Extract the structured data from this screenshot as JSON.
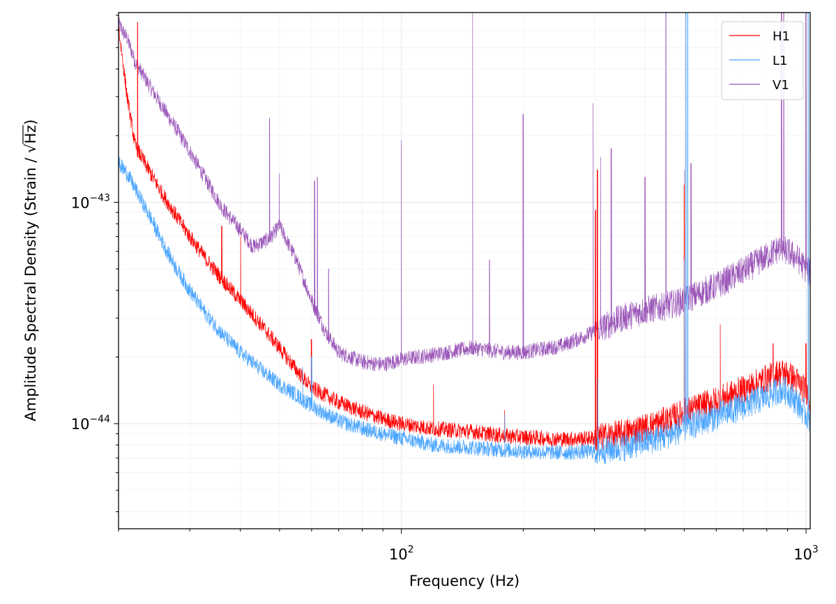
{
  "chart_data": {
    "type": "line",
    "xlabel": "Frequency (Hz)",
    "ylabel_text": "Amplitude Spectral Density (Strain / ",
    "ylabel_sqrt": "√",
    "ylabel_unit": "Hz",
    "ylabel_close": ")",
    "xscale": "log",
    "yscale": "log",
    "xlim": [
      20,
      1024
    ],
    "ylim": [
      3.35e-45,
      7.2e-43
    ],
    "grid": true,
    "legend_position": "top-right",
    "x_major_ticks": [
      {
        "value": 100,
        "base": "10",
        "exp": "2"
      },
      {
        "value": 1000,
        "base": "10",
        "exp": "3"
      }
    ],
    "y_major_ticks": [
      {
        "value": 1e-44,
        "base": "10",
        "exp": "−44"
      },
      {
        "value": 1e-43,
        "base": "10",
        "exp": "−43"
      }
    ],
    "series": [
      {
        "name": "H1",
        "color": "#ff0000",
        "x": [
          20,
          21,
          22,
          24,
          26,
          28,
          30,
          33,
          36,
          40,
          45,
          50,
          55,
          60,
          70,
          80,
          90,
          100,
          120,
          150,
          180,
          200,
          250,
          300,
          350,
          400,
          450,
          500,
          550,
          600,
          700,
          800,
          860,
          900,
          950,
          1000,
          1024
        ],
        "y": [
          6.2e-43,
          3e-43,
          1.8e-43,
          1.35e-43,
          1.05e-43,
          8.5e-44,
          7e-44,
          5.5e-44,
          4.5e-44,
          3.6e-44,
          2.8e-44,
          2.2e-44,
          1.75e-44,
          1.45e-44,
          1.25e-44,
          1.13e-44,
          1.05e-44,
          1e-44,
          9.5e-45,
          9.2e-45,
          8.8e-45,
          8.7e-45,
          8.5e-45,
          8.6e-45,
          9e-45,
          9.6e-45,
          1.03e-44,
          1.12e-44,
          1.2e-44,
          1.27e-44,
          1.42e-44,
          1.6e-44,
          1.7e-44,
          1.68e-44,
          1.55e-44,
          1.4e-44,
          1.3e-44
        ],
        "spikes": [
          [
            22.3,
            6.5e-43
          ],
          [
            36,
            7.8e-44
          ],
          [
            40,
            7e-44
          ],
          [
            59.9,
            2.4e-44
          ],
          [
            120,
            1.5e-44
          ],
          [
            180,
            1.15e-44
          ],
          [
            302,
            9.2e-44
          ],
          [
            305,
            1.4e-43
          ],
          [
            500,
            1.2e-43
          ],
          [
            505,
            7.2e-43
          ],
          [
            510,
            7.2e-43
          ],
          [
            600,
            3e-44
          ],
          [
            615,
            2.8e-44
          ],
          [
            830,
            2.3e-44
          ],
          [
            1000,
            2.3e-44
          ]
        ]
      },
      {
        "name": "L1",
        "color": "#4da6ff",
        "x": [
          20,
          21,
          22,
          24,
          26,
          28,
          30,
          33,
          36,
          40,
          45,
          50,
          55,
          60,
          70,
          80,
          90,
          100,
          120,
          150,
          180,
          200,
          250,
          300,
          350,
          400,
          450,
          500,
          550,
          600,
          700,
          800,
          860,
          900,
          950,
          1000,
          1024
        ],
        "y": [
          1.5e-43,
          1.35e-43,
          1.15e-43,
          8.5e-44,
          6.3e-44,
          4.9e-44,
          4e-44,
          3.1e-44,
          2.55e-44,
          2.1e-44,
          1.75e-44,
          1.5e-44,
          1.35e-44,
          1.2e-44,
          1.03e-44,
          9.5e-45,
          9e-45,
          8.6e-45,
          8e-45,
          7.8e-45,
          7.6e-45,
          7.5e-45,
          7.4e-45,
          7.5e-45,
          7.8e-45,
          8.3e-45,
          8.8e-45,
          9.5e-45,
          1.02e-44,
          1.08e-44,
          1.2e-44,
          1.33e-44,
          1.42e-44,
          1.4e-44,
          1.25e-44,
          1.1e-44,
          1.04e-44
        ],
        "spikes": [
          [
            57,
            1.8e-44
          ],
          [
            60,
            2e-44
          ],
          [
            180,
            1.1e-44
          ],
          [
            306,
            1.6e-44
          ],
          [
            500,
            5.5e-44
          ],
          [
            505,
            7.2e-43
          ],
          [
            510,
            7.2e-43
          ],
          [
            1012,
            7.2e-43
          ]
        ]
      },
      {
        "name": "V1",
        "color": "#9a55b8",
        "x": [
          20,
          21,
          22,
          24,
          26,
          28,
          30,
          33,
          36,
          40,
          43,
          47,
          50,
          55,
          60,
          65,
          70,
          80,
          90,
          100,
          120,
          150,
          180,
          200,
          250,
          300,
          350,
          400,
          450,
          500,
          550,
          600,
          700,
          800,
          860,
          900,
          950,
          1000,
          1024
        ],
        "y": [
          6.4e-43,
          5.5e-43,
          4.3e-43,
          3.3e-43,
          2.6e-43,
          2.1e-43,
          1.7e-43,
          1.25e-43,
          9.5e-44,
          7.5e-44,
          6.3e-44,
          6.8e-44,
          7.8e-44,
          5.5e-44,
          3.6e-44,
          2.6e-44,
          2.1e-44,
          1.9e-44,
          1.85e-44,
          1.95e-44,
          2.05e-44,
          2.2e-44,
          2.1e-44,
          2.1e-44,
          2.25e-44,
          2.6e-44,
          3e-44,
          3.25e-44,
          3.4e-44,
          3.6e-44,
          3.9e-44,
          4.2e-44,
          4.9e-44,
          5.7e-44,
          6.2e-44,
          6e-44,
          5.6e-44,
          5e-44,
          4.8e-44
        ],
        "spikes": [
          [
            47.2,
            2.4e-43
          ],
          [
            50,
            1.35e-43
          ],
          [
            61,
            1.25e-43
          ],
          [
            62,
            1.3e-43
          ],
          [
            66,
            5e-44
          ],
          [
            100,
            1.9e-43
          ],
          [
            150,
            7.2e-43
          ],
          [
            165,
            5.5e-44
          ],
          [
            200,
            2.5e-43
          ],
          [
            298,
            2.8e-43
          ],
          [
            310,
            1.6e-43
          ],
          [
            330,
            1.75e-43
          ],
          [
            400,
            1.3e-43
          ],
          [
            450,
            7.2e-43
          ],
          [
            455,
            7.2e-43
          ],
          [
            500,
            1.4e-43
          ],
          [
            520,
            1.5e-43
          ],
          [
            870,
            7.2e-43
          ],
          [
            880,
            7.2e-43
          ],
          [
            890,
            7.2e-43
          ],
          [
            1000,
            7.2e-43
          ]
        ]
      }
    ]
  }
}
